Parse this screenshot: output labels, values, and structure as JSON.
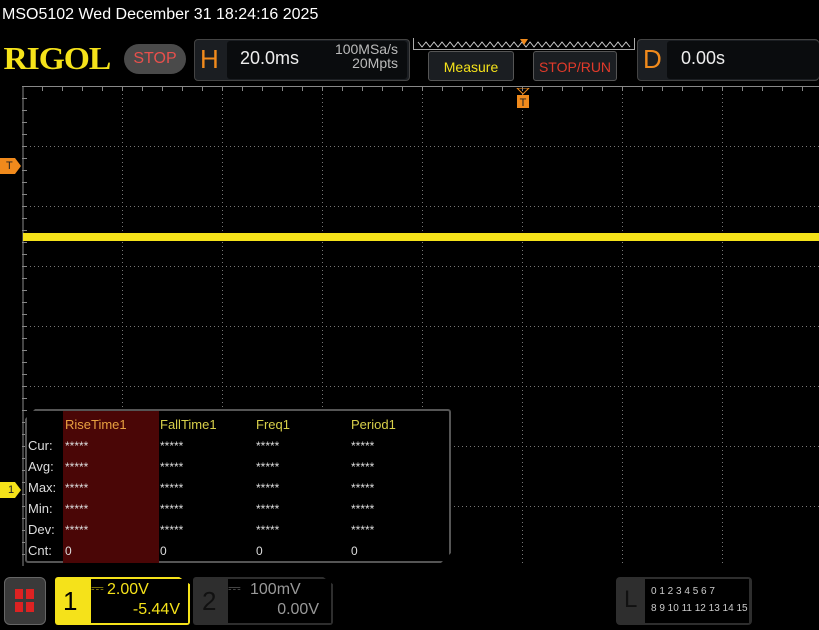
{
  "header": {
    "title": "MSO5102  Wed December 31 18:24:16 2025",
    "logo": "RIGOL",
    "run_state": "STOP"
  },
  "horizontal": {
    "label": "H",
    "timebase": "20.0ms",
    "sample_rate": "100MSa/s",
    "memory_depth": "20Mpts"
  },
  "buttons": {
    "measure": "Measure",
    "stop_run": "STOP/RUN"
  },
  "delay": {
    "label": "D",
    "value": "0.00s"
  },
  "markers": {
    "trigger": "T",
    "channel1": "1"
  },
  "measurements": {
    "columns": [
      "RiseTime1",
      "FallTime1",
      "Freq1",
      "Period1"
    ],
    "rows": [
      {
        "label": "Cur:",
        "values": [
          "*****",
          "*****",
          "*****",
          "*****"
        ]
      },
      {
        "label": "Avg:",
        "values": [
          "*****",
          "*****",
          "*****",
          "*****"
        ]
      },
      {
        "label": "Max:",
        "values": [
          "*****",
          "*****",
          "*****",
          "*****"
        ]
      },
      {
        "label": "Min:",
        "values": [
          "*****",
          "*****",
          "*****",
          "*****"
        ]
      },
      {
        "label": "Dev:",
        "values": [
          "*****",
          "*****",
          "*****",
          "*****"
        ]
      },
      {
        "label": "Cnt:",
        "values": [
          "0",
          "0",
          "0",
          "0"
        ]
      }
    ]
  },
  "channels": [
    {
      "number": "1",
      "scale": "2.00V",
      "offset": "-5.44V",
      "color": "#f5e21a",
      "coupling_icon": "dc-coupling-icon"
    },
    {
      "number": "2",
      "scale": "100mV",
      "offset": "0.00V",
      "color": "#888888",
      "coupling_icon": "dc-coupling-icon"
    }
  ],
  "logic": {
    "label": "L",
    "row1": "0 1 2 3  4 5 6 7",
    "row2": "8 9 10 11 12 13 14 15"
  },
  "colors": {
    "trace": "#f5e21a",
    "trigger": "#f08a1c",
    "stop": "#e8504c"
  }
}
